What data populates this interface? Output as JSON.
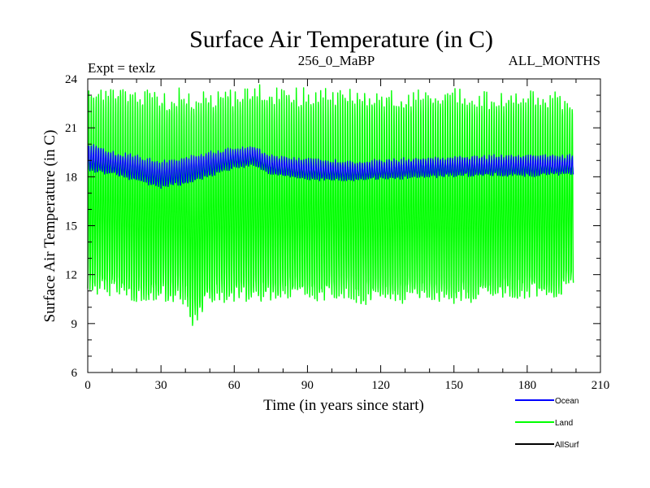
{
  "chart_data": {
    "type": "line",
    "title": "Surface Air Temperature (in C)",
    "subtitle_left": "Expt = texlz",
    "subtitle_center": "256_0_MaBP",
    "subtitle_right": "ALL_MONTHS",
    "xlabel": "Time (in years since start)",
    "ylabel": "Surface Air Temperature (in C)",
    "xlim": [
      0,
      210
    ],
    "ylim": [
      6,
      24
    ],
    "xticks": [
      "0",
      "30",
      "60",
      "90",
      "120",
      "150",
      "180",
      "210"
    ],
    "yticks": [
      "6",
      "9",
      "12",
      "15",
      "18",
      "21",
      "24"
    ],
    "x_minor_step": 10,
    "y_minor_step": 1,
    "months_per_year": 12,
    "record_years": 199,
    "legend": [
      {
        "name": "Ocean",
        "color": "#0000ff"
      },
      {
        "name": "Land",
        "color": "#00ff00"
      },
      {
        "name": "AllSurf",
        "color": "#000000"
      }
    ],
    "series": [
      {
        "name": "Land",
        "color": "#00ff00",
        "description": "monthly values oscillating seasonally",
        "envelope_years": [
          0,
          10,
          20,
          30,
          40,
          43,
          50,
          60,
          70,
          80,
          90,
          100,
          110,
          120,
          130,
          140,
          150,
          160,
          170,
          180,
          190,
          199
        ],
        "seasonal_max": [
          23.6,
          23.6,
          23.4,
          23.3,
          23.4,
          23.0,
          23.5,
          23.5,
          23.6,
          23.4,
          23.4,
          23.3,
          23.3,
          23.3,
          23.4,
          23.4,
          23.5,
          23.3,
          23.3,
          23.4,
          23.4,
          22.8
        ],
        "seasonal_min": [
          10.8,
          10.8,
          10.3,
          10.3,
          10.1,
          8.7,
          10.2,
          10.4,
          10.3,
          10.4,
          10.4,
          10.6,
          10.3,
          10.2,
          10.3,
          10.4,
          10.2,
          10.3,
          10.5,
          10.5,
          10.4,
          11.2
        ]
      },
      {
        "name": "Ocean",
        "color": "#0000ff",
        "description": "monthly values with small seasonal cycle",
        "envelope_years": [
          0,
          10,
          20,
          30,
          40,
          50,
          60,
          68,
          75,
          90,
          110,
          120,
          150,
          180,
          199
        ],
        "seasonal_max": [
          20.1,
          19.5,
          19.3,
          18.9,
          19.2,
          19.5,
          19.7,
          19.9,
          19.3,
          19.1,
          18.9,
          19.0,
          19.2,
          19.3,
          19.3
        ],
        "seasonal_min": [
          18.4,
          18.2,
          17.8,
          17.4,
          17.6,
          18.1,
          18.6,
          18.7,
          18.2,
          17.9,
          17.8,
          17.9,
          18.1,
          18.1,
          18.2
        ]
      },
      {
        "name": "AllSurf",
        "color": "#000000",
        "description": "listed in legend; not visible in plot",
        "values": []
      }
    ]
  }
}
